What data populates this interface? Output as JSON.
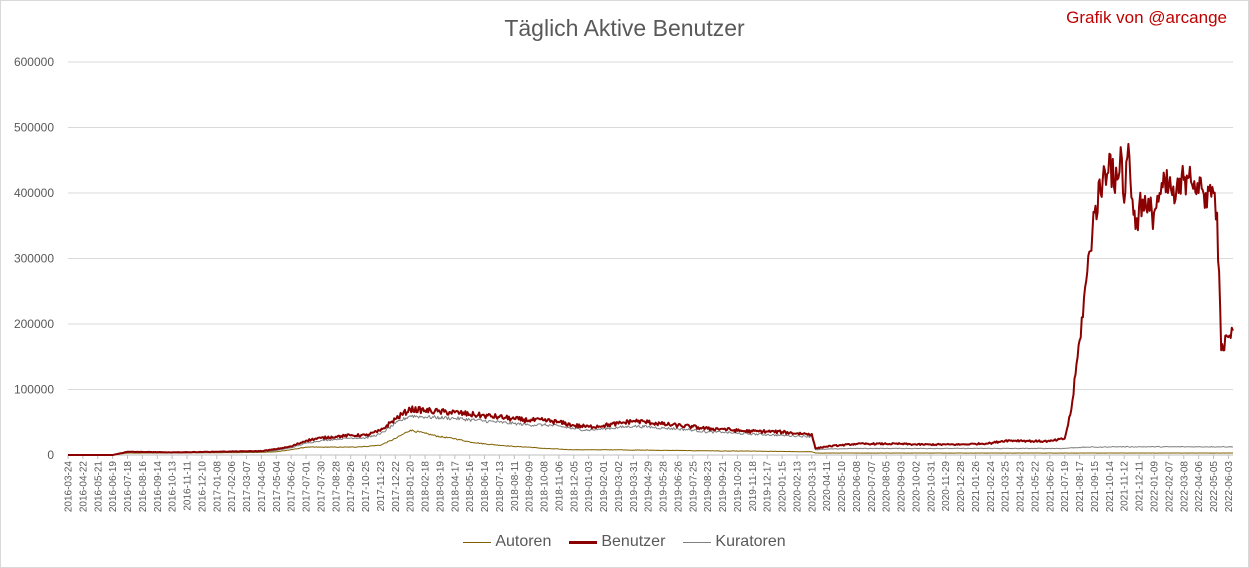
{
  "title": "Täglich Aktive Benutzer",
  "credit": "Grafik von @arcange",
  "chart_data": {
    "type": "line",
    "title": "Täglich Aktive Benutzer",
    "ylim": [
      0,
      600000
    ],
    "y_ticks": [
      "0",
      "100000",
      "200000",
      "300000",
      "400000",
      "500000",
      "600000"
    ],
    "grid": true,
    "legend_position": "bottom",
    "x_ticks": [
      "2016-03-24",
      "2016-04-22",
      "2016-05-21",
      "2016-06-19",
      "2016-07-18",
      "2016-08-16",
      "2016-09-14",
      "2016-10-13",
      "2016-11-11",
      "2016-12-10",
      "2017-01-08",
      "2017-02-06",
      "2017-03-07",
      "2017-04-05",
      "2017-05-04",
      "2017-06-02",
      "2017-07-01",
      "2017-07-30",
      "2017-08-28",
      "2017-09-26",
      "2017-10-25",
      "2017-11-23",
      "2017-12-22",
      "2018-01-20",
      "2018-02-18",
      "2018-03-19",
      "2018-04-17",
      "2018-05-16",
      "2018-06-14",
      "2018-07-13",
      "2018-08-11",
      "2018-09-09",
      "2018-10-08",
      "2018-11-06",
      "2018-12-05",
      "2019-01-03",
      "2019-02-01",
      "2019-03-02",
      "2019-03-31",
      "2019-04-29",
      "2019-05-28",
      "2019-06-26",
      "2019-07-25",
      "2019-08-23",
      "2019-09-21",
      "2019-10-20",
      "2019-11-18",
      "2019-12-17",
      "2020-01-15",
      "2020-02-13",
      "2020-03-13",
      "2020-04-11",
      "2020-05-10",
      "2020-06-08",
      "2020-07-07",
      "2020-08-05",
      "2020-09-03",
      "2020-10-02",
      "2020-10-31",
      "2020-11-29",
      "2020-12-28",
      "2021-01-26",
      "2021-02-24",
      "2021-03-25",
      "2021-04-23",
      "2021-05-22",
      "2021-06-20",
      "2021-07-19",
      "2021-08-17",
      "2021-09-15",
      "2021-10-14",
      "2021-11-12",
      "2021-12-11",
      "2022-01-09",
      "2022-02-07",
      "2022-03-08",
      "2022-04-06",
      "2022-05-05",
      "2022-06-03"
    ],
    "x": [
      "2016-03-24",
      "2016-06-19",
      "2016-07-18",
      "2016-10-13",
      "2017-01-08",
      "2017-04-05",
      "2017-05-04",
      "2017-06-02",
      "2017-07-01",
      "2017-07-30",
      "2017-08-28",
      "2017-09-26",
      "2017-10-25",
      "2017-11-23",
      "2017-12-22",
      "2018-01-20",
      "2018-02-18",
      "2018-03-19",
      "2018-04-17",
      "2018-05-16",
      "2018-06-14",
      "2018-07-13",
      "2018-08-11",
      "2018-09-09",
      "2018-10-08",
      "2018-11-06",
      "2018-12-05",
      "2019-01-03",
      "2019-02-01",
      "2019-03-02",
      "2019-03-31",
      "2019-04-29",
      "2019-05-28",
      "2019-06-26",
      "2019-07-25",
      "2019-08-23",
      "2019-09-21",
      "2019-10-20",
      "2019-11-18",
      "2019-12-17",
      "2020-01-15",
      "2020-02-13",
      "2020-03-13",
      "2020-03-20",
      "2020-04-11",
      "2020-05-10",
      "2020-06-08",
      "2020-07-07",
      "2020-08-05",
      "2020-09-03",
      "2020-10-02",
      "2020-10-31",
      "2020-11-29",
      "2020-12-28",
      "2021-01-26",
      "2021-02-24",
      "2021-03-25",
      "2021-04-23",
      "2021-05-22",
      "2021-06-20",
      "2021-07-19",
      "2021-08-01",
      "2021-08-17",
      "2021-09-01",
      "2021-09-15",
      "2021-10-01",
      "2021-10-14",
      "2021-10-25",
      "2021-11-05",
      "2021-11-12",
      "2021-11-20",
      "2021-11-28",
      "2021-12-04",
      "2021-12-11",
      "2021-12-18",
      "2021-12-27",
      "2022-01-09",
      "2022-01-20",
      "2022-02-07",
      "2022-02-20",
      "2022-03-08",
      "2022-03-20",
      "2022-04-06",
      "2022-04-20",
      "2022-05-05",
      "2022-05-12",
      "2022-05-20",
      "2022-06-03",
      "2022-06-12"
    ],
    "series": [
      {
        "name": "Autoren",
        "color": "#7f6000",
        "values": [
          0,
          0,
          3000,
          3000,
          3500,
          4000,
          5000,
          8000,
          12000,
          12000,
          12000,
          12000,
          13000,
          15000,
          25000,
          38000,
          33000,
          28000,
          25000,
          20000,
          17000,
          15000,
          13000,
          12000,
          10000,
          9000,
          8000,
          8000,
          8000,
          8000,
          7500,
          7500,
          7000,
          7000,
          6500,
          6500,
          6000,
          6000,
          6000,
          5500,
          5500,
          5000,
          5000,
          3000,
          3000,
          3000,
          3000,
          3000,
          3000,
          3000,
          3000,
          3000,
          3000,
          3000,
          3000,
          3000,
          3000,
          3000,
          3000,
          3000,
          3000,
          3000,
          3000,
          3000,
          3000,
          3000,
          3000,
          3000,
          3000,
          3000,
          3000,
          3000,
          3000,
          3000,
          3000,
          3000,
          3000,
          3000,
          3000,
          3000,
          3000,
          3000,
          3000,
          3000,
          3000,
          3000,
          3000,
          3000,
          3000
        ]
      },
      {
        "name": "Benutzer",
        "color": "#8b0000",
        "values": [
          0,
          0,
          5000,
          4000,
          5000,
          6000,
          9000,
          13000,
          22000,
          26000,
          28000,
          30000,
          30000,
          37000,
          55000,
          70000,
          68000,
          66000,
          65000,
          62000,
          60000,
          58000,
          55000,
          53000,
          53000,
          50000,
          45000,
          43000,
          45000,
          48000,
          52000,
          50000,
          47000,
          45000,
          43000,
          40000,
          40000,
          37000,
          36000,
          36000,
          35000,
          33000,
          32000,
          10000,
          13000,
          15000,
          17000,
          17000,
          17000,
          17000,
          16000,
          16000,
          16000,
          16000,
          17000,
          18000,
          22000,
          22000,
          21000,
          21000,
          25000,
          70000,
          175000,
          280000,
          370000,
          420000,
          460000,
          400000,
          470000,
          385000,
          475000,
          390000,
          345000,
          380000,
          390000,
          370000,
          370000,
          400000,
          410000,
          390000,
          420000,
          440000,
          400000,
          400000,
          400000,
          370000,
          160000,
          180000,
          190000
        ]
      },
      {
        "name": "Kuratoren",
        "color": "#7f7f7f",
        "values": [
          0,
          0,
          4000,
          3500,
          4000,
          5000,
          7000,
          11000,
          18000,
          22000,
          24000,
          26000,
          26000,
          32000,
          48000,
          60000,
          58000,
          57000,
          56000,
          54000,
          52000,
          50000,
          48000,
          46000,
          46000,
          44000,
          40000,
          38000,
          40000,
          42000,
          44000,
          43000,
          41000,
          40000,
          38000,
          35000,
          35000,
          33000,
          32000,
          31000,
          30000,
          29000,
          28000,
          8000,
          9000,
          9500,
          10000,
          10000,
          10000,
          10000,
          10000,
          10000,
          10000,
          10000,
          10000,
          10000,
          10000,
          10000,
          10000,
          10000,
          10000,
          11000,
          11500,
          12000,
          12000,
          12000,
          12500,
          12500,
          12500,
          12500,
          12500,
          12500,
          12500,
          12500,
          12500,
          12500,
          12500,
          12500,
          12500,
          12500,
          12500,
          12500,
          12500,
          12500,
          12500,
          12500,
          12500,
          12500,
          12500
        ]
      }
    ]
  }
}
